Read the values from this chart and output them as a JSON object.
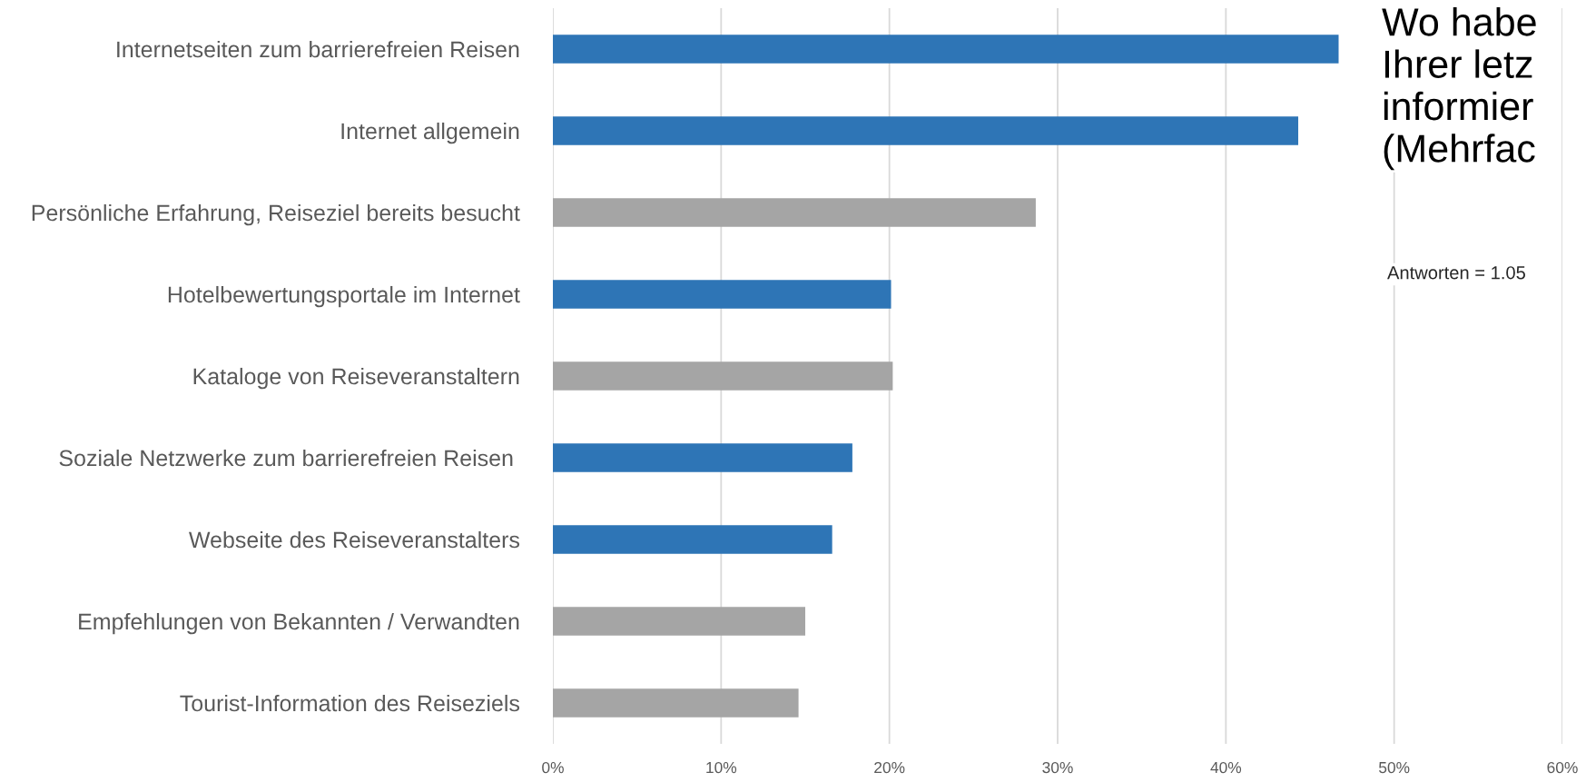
{
  "chart_data": {
    "type": "bar",
    "orientation": "horizontal",
    "title": "Wo habe\nIhrer letz\ninformier\n(Mehrfac",
    "annotations": [
      "Antworten = 1.05"
    ],
    "categories": [
      "Internetseiten zum barrierefreien Reisen",
      "Internet allgemein",
      "Persönliche Erfahrung, Reiseziel bereits besucht",
      "Hotelbewertungsportale im Internet",
      "Kataloge von Reiseveranstaltern",
      "Soziale Netzwerke zum barrierefreien Reisen ",
      "Webseite des Reiseveranstalters",
      "Empfehlungen von Bekannten / Verwandten",
      "Tourist-Information des Reiseziels"
    ],
    "values": [
      46.7,
      44.3,
      28.7,
      20.1,
      20.2,
      17.8,
      16.6,
      15.0,
      14.6
    ],
    "colors": [
      "#2e75b6",
      "#2e75b6",
      "#a5a5a5",
      "#2e75b6",
      "#a5a5a5",
      "#2e75b6",
      "#2e75b6",
      "#a5a5a5",
      "#a5a5a5"
    ],
    "xlim": [
      0,
      60
    ],
    "xticks": [
      {
        "value": 0,
        "label": "0%"
      },
      {
        "value": 10,
        "label": "10%"
      },
      {
        "value": 20,
        "label": "20%"
      },
      {
        "value": 30,
        "label": "30%"
      },
      {
        "value": 40,
        "label": "40%"
      },
      {
        "value": 50,
        "label": "50%"
      },
      {
        "value": 60,
        "label": "60%"
      }
    ],
    "grid": "x"
  }
}
